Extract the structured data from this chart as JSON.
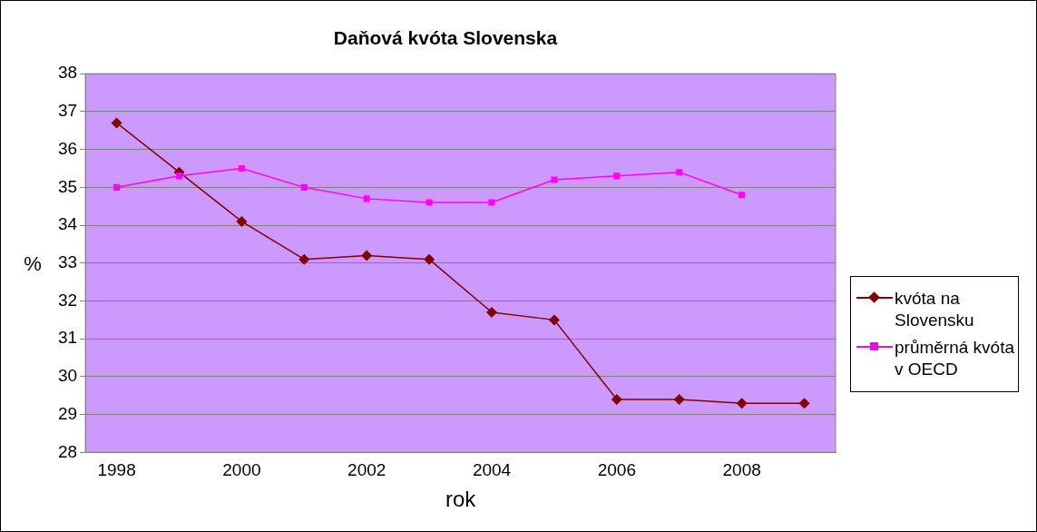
{
  "chart_data": {
    "type": "line",
    "title": "Daňová kvóta Slovenska",
    "xlabel": "rok",
    "ylabel": "%",
    "x": [
      1998,
      1999,
      2000,
      2001,
      2002,
      2003,
      2004,
      2005,
      2006,
      2007,
      2008,
      2009
    ],
    "xlim": [
      1997.5,
      2009.5
    ],
    "xticks": [
      1998,
      2000,
      2002,
      2004,
      2006,
      2008
    ],
    "ylim": [
      28,
      38
    ],
    "yticks": [
      28,
      29,
      30,
      31,
      32,
      33,
      34,
      35,
      36,
      37,
      38
    ],
    "series": [
      {
        "name": "kvóta na Slovensku",
        "color": "#800000",
        "marker": "diamond",
        "values": [
          36.7,
          35.4,
          34.1,
          33.1,
          33.2,
          33.1,
          31.7,
          31.5,
          29.4,
          29.4,
          29.3,
          29.3
        ]
      },
      {
        "name": "průměrná kvóta v OECD",
        "color": "#ff00ff",
        "marker": "square",
        "values": [
          35.0,
          35.3,
          35.5,
          35.0,
          34.7,
          34.6,
          34.6,
          35.2,
          35.3,
          35.4,
          34.8,
          null
        ]
      }
    ],
    "grid": "y",
    "legend": "right",
    "line_style": "solid"
  }
}
